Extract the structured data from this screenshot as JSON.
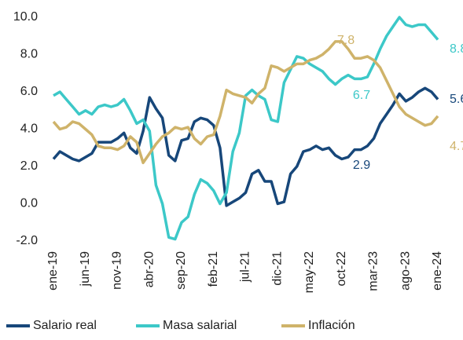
{
  "chart_data": {
    "type": "line",
    "categories": [
      "ene-19",
      null,
      null,
      null,
      null,
      "jun-19",
      null,
      null,
      null,
      null,
      "nov-19",
      null,
      null,
      null,
      null,
      "abr-20",
      null,
      null,
      null,
      null,
      "sep-20",
      null,
      null,
      null,
      null,
      "feb-21",
      null,
      null,
      null,
      null,
      "jul-21",
      null,
      null,
      null,
      null,
      "dic-21",
      null,
      null,
      null,
      null,
      "may-22",
      null,
      null,
      null,
      null,
      "oct-22",
      null,
      null,
      null,
      null,
      "mar-23",
      null,
      null,
      null,
      null,
      "ago-23",
      null,
      null,
      null,
      null,
      "ene-24"
    ],
    "series": [
      {
        "name": "Salario real",
        "color": "#17477a",
        "values": [
          2.4,
          2.8,
          2.6,
          2.4,
          2.3,
          2.5,
          2.7,
          3.3,
          3.3,
          3.3,
          3.5,
          3.8,
          3.0,
          2.7,
          3.9,
          5.7,
          5.1,
          4.6,
          2.6,
          2.3,
          3.4,
          3.5,
          4.4,
          4.6,
          4.5,
          4.2,
          3.0,
          -0.1,
          0.1,
          0.3,
          0.6,
          1.6,
          1.8,
          1.2,
          1.2,
          0.0,
          0.1,
          1.6,
          2.0,
          2.8,
          2.9,
          3.1,
          2.9,
          3.0,
          2.6,
          2.4,
          2.5,
          2.9,
          2.9,
          3.1,
          3.5,
          4.3,
          4.8,
          5.3,
          5.9,
          5.5,
          5.7,
          6.0,
          6.2,
          6.0,
          5.6
        ]
      },
      {
        "name": "Masa salarial",
        "color": "#3cc8c8",
        "values": [
          5.8,
          6.0,
          5.6,
          5.2,
          4.8,
          5.0,
          4.8,
          5.2,
          5.3,
          5.2,
          5.3,
          5.6,
          5.0,
          4.3,
          4.5,
          3.9,
          1.0,
          0.0,
          -1.8,
          -1.9,
          -1.0,
          -0.7,
          0.5,
          1.3,
          1.1,
          0.7,
          0.0,
          0.6,
          2.8,
          3.8,
          5.8,
          6.1,
          5.8,
          5.6,
          4.5,
          4.4,
          6.5,
          7.2,
          7.9,
          7.8,
          7.5,
          7.3,
          7.1,
          6.7,
          6.4,
          6.7,
          6.9,
          6.7,
          6.7,
          6.8,
          7.5,
          8.3,
          9.0,
          9.5,
          10.0,
          9.6,
          9.5,
          9.6,
          9.6,
          9.2,
          8.8
        ]
      },
      {
        "name": "Inflación",
        "color": "#cfb36a",
        "values": [
          4.4,
          4.0,
          4.1,
          4.4,
          4.3,
          4.0,
          3.7,
          3.1,
          3.0,
          3.0,
          2.9,
          3.1,
          3.6,
          3.3,
          2.2,
          2.7,
          3.2,
          3.6,
          3.8,
          4.1,
          4.0,
          4.1,
          3.5,
          3.2,
          3.6,
          3.7,
          4.7,
          6.1,
          5.9,
          5.8,
          5.7,
          5.4,
          5.9,
          6.2,
          7.4,
          7.3,
          7.1,
          7.3,
          7.5,
          7.5,
          7.7,
          7.8,
          8.0,
          8.3,
          8.7,
          8.7,
          8.3,
          7.8,
          7.8,
          7.9,
          7.7,
          7.3,
          6.6,
          5.9,
          5.2,
          4.8,
          4.6,
          4.4,
          4.2,
          4.3,
          4.7
        ]
      }
    ],
    "ylim": [
      -2,
      10
    ],
    "yticks": [
      {
        "value": -2,
        "label": "-2.0"
      },
      {
        "value": 0,
        "label": "0.0"
      },
      {
        "value": 2,
        "label": "2.0"
      },
      {
        "value": 4,
        "label": "4.0"
      },
      {
        "value": 6,
        "label": "6.0"
      },
      {
        "value": 8,
        "label": "8.0"
      },
      {
        "value": 10,
        "label": "10.0"
      }
    ],
    "legend": "bottom"
  }
}
